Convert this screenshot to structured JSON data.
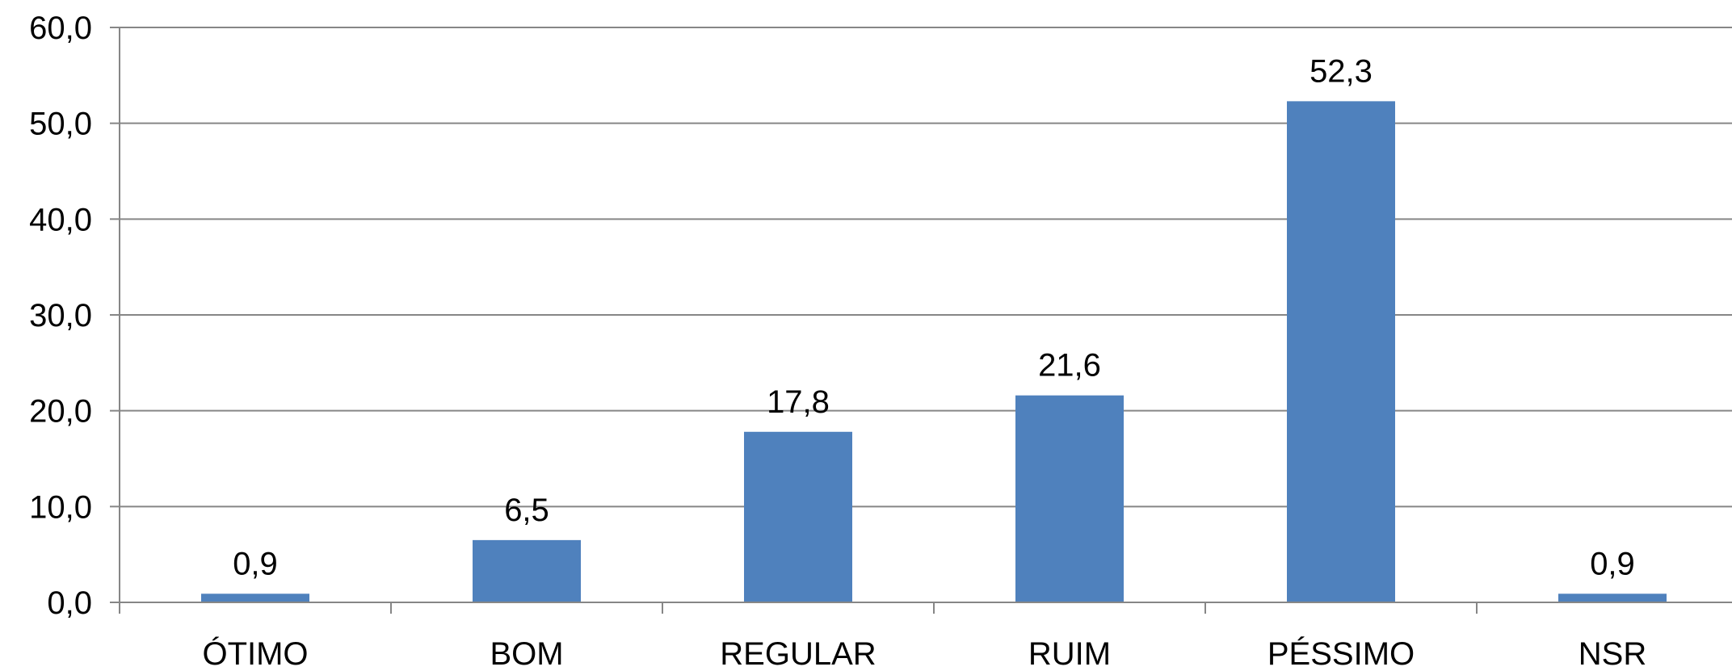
{
  "chart_data": {
    "type": "bar",
    "title": "",
    "xlabel": "",
    "ylabel": "",
    "categories": [
      "ÓTIMO",
      "BOM",
      "REGULAR",
      "RUIM",
      "PÉSSIMO",
      "NSR"
    ],
    "values": [
      0.9,
      6.5,
      17.8,
      21.6,
      52.3,
      0.9
    ],
    "value_labels": [
      "0,9",
      "6,5",
      "17,8",
      "21,6",
      "52,3",
      "0,9"
    ],
    "ylim": [
      0,
      60
    ],
    "yticks": [
      0,
      10,
      20,
      30,
      40,
      50,
      60
    ],
    "ytick_labels": [
      "0,0",
      "10,0",
      "20,0",
      "30,0",
      "40,0",
      "50,0",
      "60,0"
    ],
    "grid": true,
    "legend": "none",
    "bar_color": "#4f81bd",
    "grid_color": "#868686"
  }
}
